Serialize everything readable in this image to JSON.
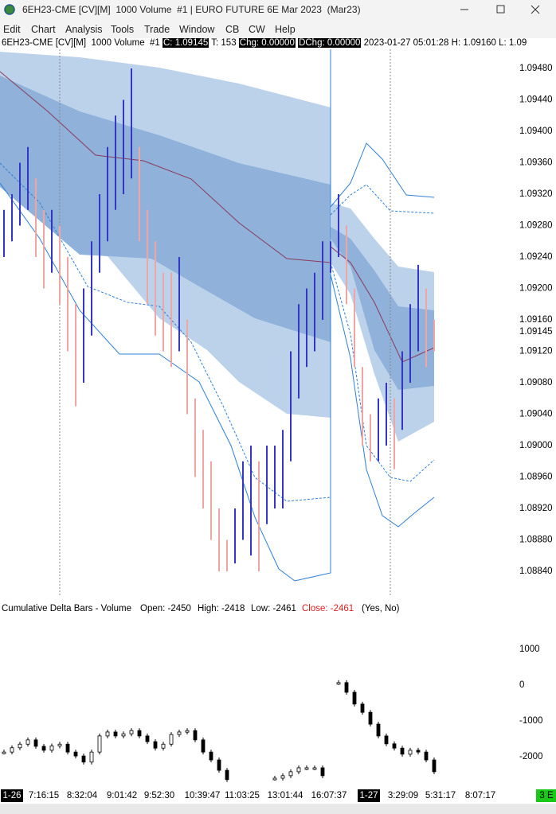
{
  "window": {
    "title": "6EH23-CME [CV][M]  1000 Volume  #1 | EURO FUTURE 6E Mar 2023  (Mar23)"
  },
  "menu": [
    "Edit",
    "Chart",
    "Analysis",
    "Tools",
    "Trade",
    "Window",
    "CB",
    "CW",
    "Help"
  ],
  "chart_header": {
    "symbol": "6EH23-CME [CV][M]  1000 Volume  #1",
    "close": "C: 1.09145",
    "trades": "T: 153",
    "change": "Chg: 0.00000",
    "dchange": "DChg: 0.00000",
    "datetime": "2023-01-27 05:01:28",
    "high": "H: 1.09160",
    "low": "L: 1.09"
  },
  "price_panel": {
    "yticks": [
      {
        "value": 1.0948,
        "label": "1.09480"
      },
      {
        "value": 1.0944,
        "label": "1.09440"
      },
      {
        "value": 1.094,
        "label": "1.09400"
      },
      {
        "value": 1.0936,
        "label": "1.09360"
      },
      {
        "value": 1.0932,
        "label": "1.09320"
      },
      {
        "value": 1.0928,
        "label": "1.09280"
      },
      {
        "value": 1.0924,
        "label": "1.09240"
      },
      {
        "value": 1.092,
        "label": "1.09200"
      },
      {
        "value": 1.0916,
        "label": "1.09160"
      },
      {
        "value": 1.09145,
        "label": "1.09145"
      },
      {
        "value": 1.0912,
        "label": "1.09120"
      },
      {
        "value": 1.0908,
        "label": "1.09080"
      },
      {
        "value": 1.0904,
        "label": "1.09040"
      },
      {
        "value": 1.09,
        "label": "1.09000"
      },
      {
        "value": 1.0896,
        "label": "1.08960"
      },
      {
        "value": 1.0892,
        "label": "1.08920"
      },
      {
        "value": 1.0888,
        "label": "1.08880"
      },
      {
        "value": 1.0884,
        "label": "1.08840"
      }
    ],
    "up_color": "#3535c8",
    "down_color": "#f0a4a4",
    "bars": {
      "high": [
        1.093,
        1.0932,
        1.0936,
        1.0938,
        1.0934,
        1.093,
        1.093,
        1.0928,
        1.0924,
        1.0918,
        1.092,
        1.0926,
        1.0932,
        1.0938,
        1.0942,
        1.0944,
        1.0948,
        1.0938,
        1.093,
        1.0926,
        1.0922,
        1.0922,
        1.0924,
        1.0916,
        1.0906,
        1.0902,
        1.0898,
        1.0892,
        1.0888,
        1.0892,
        1.0898,
        1.09,
        1.0898,
        1.09,
        1.09,
        1.0902,
        1.0912,
        1.0918,
        1.092,
        1.0922,
        1.0926,
        1.0926,
        1.0932,
        1.0928,
        1.092,
        1.091,
        1.0904,
        1.0906,
        1.0908,
        1.0906,
        1.0912,
        1.0918,
        1.0923,
        1.092,
        1.0916
      ],
      "low": [
        1.0924,
        1.0926,
        1.0928,
        1.093,
        1.0924,
        1.092,
        1.0922,
        1.0918,
        1.0912,
        1.0905,
        1.0908,
        1.0914,
        1.0922,
        1.0926,
        1.093,
        1.0932,
        1.0934,
        1.0926,
        1.0918,
        1.0914,
        1.0912,
        1.091,
        1.0912,
        1.0904,
        1.0896,
        1.0892,
        1.0888,
        1.0884,
        1.0884,
        1.0885,
        1.0888,
        1.0886,
        1.0884,
        1.089,
        1.0892,
        1.0892,
        1.0898,
        1.0906,
        1.091,
        1.0912,
        1.0916,
        1.0922,
        1.0924,
        1.0918,
        1.091,
        1.09,
        1.0898,
        1.0898,
        1.09,
        1.0897,
        1.0902,
        1.0908,
        1.0912,
        1.091,
        1.0912
      ]
    }
  },
  "delta_panel": {
    "title": "Cumulative Delta Bars - Volume",
    "open": "Open: -2450",
    "high": "High: -2418",
    "low": "Low: -2461",
    "close": "Close: -2461",
    "flags": "(Yes, No)",
    "yticks": [
      1000,
      0,
      -1000,
      -2000
    ],
    "values": [
      -1870,
      -1750,
      -1650,
      -1530,
      -1710,
      -1820,
      -1700,
      -1650,
      -1870,
      -1980,
      -2150,
      -1870,
      -1420,
      -1310,
      -1420,
      -1360,
      -1270,
      -1420,
      -1580,
      -1760,
      -1650,
      -1380,
      -1310,
      -1270,
      -1530,
      -1870,
      -2090,
      -2380,
      -2640,
      null,
      null,
      null,
      null,
      null,
      -2600,
      -2530,
      -2420,
      -2310,
      -2310,
      -2310,
      -2530,
      null,
      70,
      -200,
      -530,
      -760,
      -1090,
      -1420,
      -1640,
      -1760,
      -1930,
      -1820,
      -1870,
      -2090,
      -2420
    ]
  },
  "time_axis": [
    "1-26",
    "7:16:15",
    "8:32:04",
    "9:01:42",
    "9:52:30",
    "10:39:47",
    "11:03:25",
    "13:01:44",
    "16:07:37",
    "1-27",
    "3:29:09",
    "5:31:17",
    "8:07:17"
  ],
  "status": "3 E"
}
